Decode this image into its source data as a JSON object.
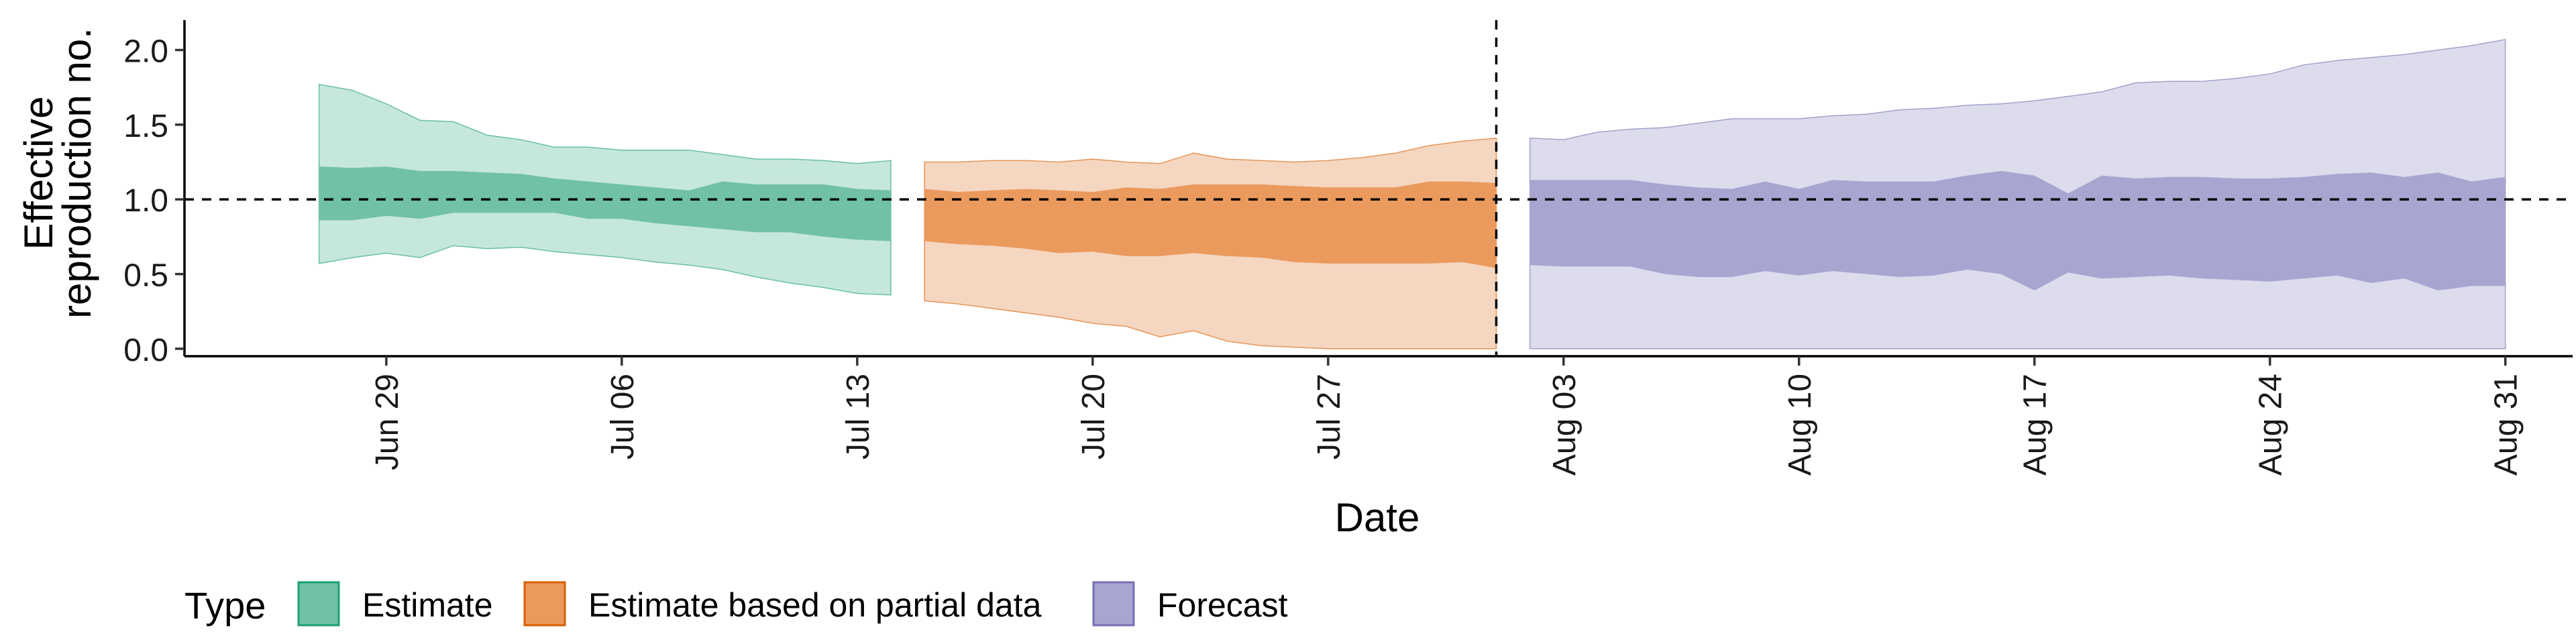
{
  "chart_data": {
    "type": "area",
    "xlabel": "Date",
    "ylabel_lines": [
      "Effective",
      "reproduction no."
    ],
    "ylim": [
      -0.05,
      2.2
    ],
    "xlim": [
      "2020-06-23",
      "2020-09-02"
    ],
    "y_ticks": [
      0.0,
      0.5,
      1.0,
      1.5,
      2.0
    ],
    "y_tick_labels": [
      "0.0",
      "0.5",
      "1.0",
      "1.5",
      "2.0"
    ],
    "x_ticks": [
      "2020-06-29",
      "2020-07-06",
      "2020-07-13",
      "2020-07-20",
      "2020-07-27",
      "2020-08-03",
      "2020-08-10",
      "2020-08-17",
      "2020-08-24",
      "2020-08-31"
    ],
    "x_tick_labels": [
      "Jun 29",
      "Jul 06",
      "Jul 13",
      "Jul 20",
      "Jul 27",
      "Aug 03",
      "Aug 10",
      "Aug 17",
      "Aug 24",
      "Aug 31"
    ],
    "hline": 1.0,
    "vline": "2020-08-01",
    "grid": false,
    "legend": {
      "position": "bottom-left",
      "title": "Type",
      "entries": [
        {
          "label": "Estimate",
          "fill": "#70c1a6",
          "border": "#1b9e77"
        },
        {
          "label": "Estimate based on partial data",
          "fill": "#eb9a5e",
          "border": "#d95f02"
        },
        {
          "label": "Forecast",
          "fill": "#a9a5d1",
          "border": "#7570b3"
        }
      ]
    },
    "series": [
      {
        "name": "Estimate",
        "outer_fill": "#c6e7dc",
        "inner_fill": "#70c1a6",
        "edge": "#1b9e77",
        "dates": [
          "2020-06-27",
          "2020-06-28",
          "2020-06-29",
          "2020-06-30",
          "2020-07-01",
          "2020-07-02",
          "2020-07-03",
          "2020-07-04",
          "2020-07-05",
          "2020-07-06",
          "2020-07-07",
          "2020-07-08",
          "2020-07-09",
          "2020-07-10",
          "2020-07-11",
          "2020-07-12",
          "2020-07-13",
          "2020-07-14"
        ],
        "lower90": [
          0.57,
          0.61,
          0.64,
          0.61,
          0.69,
          0.67,
          0.68,
          0.65,
          0.63,
          0.61,
          0.58,
          0.56,
          0.53,
          0.48,
          0.44,
          0.41,
          0.37,
          0.36
        ],
        "upper90": [
          1.77,
          1.73,
          1.64,
          1.53,
          1.52,
          1.43,
          1.4,
          1.35,
          1.35,
          1.33,
          1.33,
          1.33,
          1.3,
          1.27,
          1.27,
          1.26,
          1.24,
          1.26
        ],
        "lower50": [
          0.86,
          0.86,
          0.89,
          0.87,
          0.91,
          0.91,
          0.91,
          0.91,
          0.87,
          0.87,
          0.84,
          0.82,
          0.8,
          0.78,
          0.78,
          0.75,
          0.73,
          0.72
        ],
        "upper50": [
          1.22,
          1.21,
          1.22,
          1.19,
          1.19,
          1.18,
          1.17,
          1.14,
          1.12,
          1.1,
          1.08,
          1.06,
          1.12,
          1.1,
          1.1,
          1.1,
          1.07,
          1.06
        ]
      },
      {
        "name": "Estimate based on partial data",
        "outer_fill": "#f5d6c0",
        "inner_fill": "#eb9a5e",
        "edge": "#d95f02",
        "dates": [
          "2020-07-15",
          "2020-07-16",
          "2020-07-17",
          "2020-07-18",
          "2020-07-19",
          "2020-07-20",
          "2020-07-21",
          "2020-07-22",
          "2020-07-23",
          "2020-07-24",
          "2020-07-25",
          "2020-07-26",
          "2020-07-27",
          "2020-07-28",
          "2020-07-29",
          "2020-07-30",
          "2020-07-31",
          "2020-08-01"
        ],
        "lower90": [
          0.32,
          0.3,
          0.27,
          0.24,
          0.21,
          0.17,
          0.15,
          0.08,
          0.12,
          0.05,
          0.02,
          0.01,
          0.0,
          0.0,
          0.0,
          0.0,
          0.0,
          0.0
        ],
        "upper90": [
          1.25,
          1.25,
          1.26,
          1.26,
          1.25,
          1.27,
          1.25,
          1.24,
          1.31,
          1.27,
          1.26,
          1.25,
          1.26,
          1.28,
          1.31,
          1.36,
          1.39,
          1.41
        ],
        "lower50": [
          0.72,
          0.7,
          0.69,
          0.67,
          0.64,
          0.65,
          0.62,
          0.62,
          0.64,
          0.62,
          0.61,
          0.58,
          0.57,
          0.57,
          0.57,
          0.57,
          0.58,
          0.54
        ],
        "upper50": [
          1.07,
          1.05,
          1.06,
          1.07,
          1.06,
          1.05,
          1.08,
          1.07,
          1.1,
          1.1,
          1.1,
          1.09,
          1.08,
          1.08,
          1.08,
          1.12,
          1.12,
          1.11
        ]
      },
      {
        "name": "Forecast",
        "outer_fill": "#dddcec",
        "inner_fill": "#a9a5d1",
        "edge": "#7570b3",
        "dates": [
          "2020-08-02",
          "2020-08-03",
          "2020-08-04",
          "2020-08-05",
          "2020-08-06",
          "2020-08-07",
          "2020-08-08",
          "2020-08-09",
          "2020-08-10",
          "2020-08-11",
          "2020-08-12",
          "2020-08-13",
          "2020-08-14",
          "2020-08-15",
          "2020-08-16",
          "2020-08-17",
          "2020-08-18",
          "2020-08-19",
          "2020-08-20",
          "2020-08-21",
          "2020-08-22",
          "2020-08-23",
          "2020-08-24",
          "2020-08-25",
          "2020-08-26",
          "2020-08-27",
          "2020-08-28",
          "2020-08-29",
          "2020-08-30",
          "2020-08-31"
        ],
        "lower90": [
          0.0,
          0.0,
          0.0,
          0.0,
          0.0,
          0.0,
          0.0,
          0.0,
          0.0,
          0.0,
          0.0,
          0.0,
          0.0,
          0.0,
          0.0,
          0.0,
          0.0,
          0.0,
          0.0,
          0.0,
          0.0,
          0.0,
          0.0,
          0.0,
          0.0,
          0.0,
          0.0,
          0.0,
          0.0,
          0.0
        ],
        "upper90": [
          1.41,
          1.4,
          1.45,
          1.47,
          1.48,
          1.51,
          1.54,
          1.54,
          1.54,
          1.56,
          1.57,
          1.6,
          1.61,
          1.63,
          1.64,
          1.66,
          1.69,
          1.72,
          1.78,
          1.79,
          1.79,
          1.81,
          1.84,
          1.9,
          1.93,
          1.95,
          1.97,
          2.0,
          2.03,
          2.07
        ],
        "lower50": [
          0.56,
          0.55,
          0.55,
          0.55,
          0.5,
          0.48,
          0.48,
          0.52,
          0.49,
          0.52,
          0.5,
          0.48,
          0.49,
          0.53,
          0.5,
          0.39,
          0.51,
          0.47,
          0.48,
          0.49,
          0.47,
          0.46,
          0.45,
          0.47,
          0.49,
          0.44,
          0.47,
          0.39,
          0.42,
          0.42
        ],
        "upper50": [
          1.13,
          1.13,
          1.13,
          1.13,
          1.1,
          1.08,
          1.07,
          1.12,
          1.07,
          1.13,
          1.12,
          1.12,
          1.12,
          1.16,
          1.19,
          1.16,
          1.04,
          1.16,
          1.14,
          1.15,
          1.15,
          1.14,
          1.14,
          1.15,
          1.17,
          1.18,
          1.15,
          1.18,
          1.12,
          1.15
        ]
      }
    ]
  }
}
